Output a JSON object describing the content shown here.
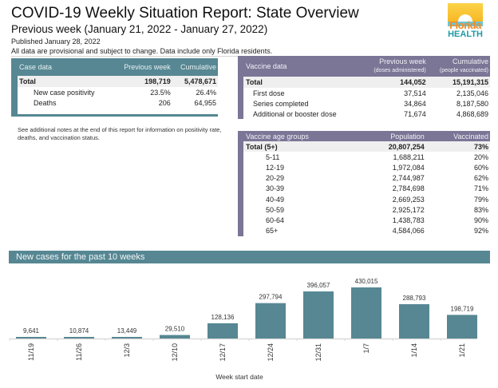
{
  "header": {
    "title": "COVID-19 Weekly Situation Report: State Overview",
    "subtitle": "Previous week (January 21, 2022 - January 27, 2022)",
    "published": "Published January 28, 2022",
    "disclaimer": "All data are provisional and subject to change. Data include only Florida residents.",
    "logo": {
      "line1": "Florida",
      "line2": "HEALTH",
      "icon": "sun-icon"
    }
  },
  "case_data": {
    "headers": [
      "Case data",
      "Previous week",
      "Cumulative"
    ],
    "rows": [
      {
        "label": "Total",
        "prev": "198,719",
        "cum": "5,478,671"
      },
      {
        "label": "New case positivity",
        "prev": "23.5%",
        "cum": "26.4%"
      },
      {
        "label": "Deaths",
        "prev": "206",
        "cum": "64,955"
      }
    ]
  },
  "note": "See additional notes at the end of this report for information on positivity rate, deaths, and vaccination status.",
  "vaccine_data": {
    "headers": {
      "label": "Vaccine data",
      "prev": "Previous week",
      "prev_sub": "(doses administered)",
      "cum": "Cumulative",
      "cum_sub": "(people vaccinated)"
    },
    "rows": [
      {
        "label": "Total",
        "prev": "144,052",
        "cum": "15,191,315"
      },
      {
        "label": "First dose",
        "prev": "37,514",
        "cum": "2,135,046"
      },
      {
        "label": "Series completed",
        "prev": "34,864",
        "cum": "8,187,580"
      },
      {
        "label": "Additional or booster dose",
        "prev": "71,674",
        "cum": "4,868,689"
      }
    ]
  },
  "age_groups": {
    "headers": [
      "Vaccine age groups",
      "Population",
      "Vaccinated"
    ],
    "rows": [
      {
        "label": "Total (5+)",
        "pop": "20,807,254",
        "vax": "73%"
      },
      {
        "label": "5-11",
        "pop": "1,688,211",
        "vax": "20%"
      },
      {
        "label": "12-19",
        "pop": "1,972,084",
        "vax": "60%"
      },
      {
        "label": "20-29",
        "pop": "2,744,987",
        "vax": "62%"
      },
      {
        "label": "30-39",
        "pop": "2,784,698",
        "vax": "71%"
      },
      {
        "label": "40-49",
        "pop": "2,669,253",
        "vax": "79%"
      },
      {
        "label": "50-59",
        "pop": "2,925,172",
        "vax": "83%"
      },
      {
        "label": "60-64",
        "pop": "1,438,783",
        "vax": "90%"
      },
      {
        "label": "65+",
        "pop": "4,584,066",
        "vax": "92%"
      }
    ]
  },
  "chart_data": {
    "type": "bar",
    "title": "New cases for the past 10 weeks",
    "xlabel": "Week start date",
    "ylabel": "",
    "categories": [
      "11/19",
      "11/26",
      "12/3",
      "12/10",
      "12/17",
      "12/24",
      "12/31",
      "1/7",
      "1/14",
      "1/21"
    ],
    "values": [
      9641,
      10874,
      13449,
      29510,
      128136,
      297794,
      396057,
      430015,
      288793,
      198719
    ],
    "value_labels": [
      "9,641",
      "10,874",
      "13,449",
      "29,510",
      "128,136",
      "297,794",
      "396,057",
      "430,015",
      "288,793",
      "198,719"
    ],
    "ylim": [
      0,
      430015
    ],
    "grid": false,
    "bar_color": "#568793"
  }
}
